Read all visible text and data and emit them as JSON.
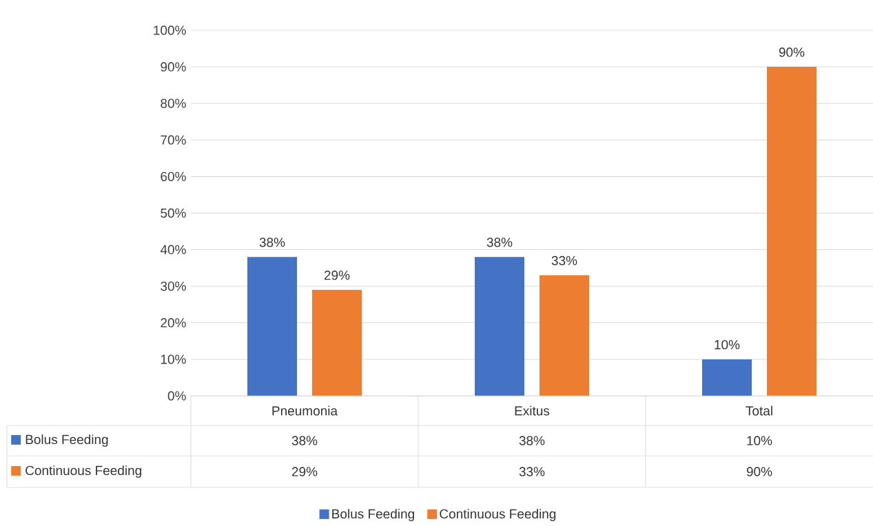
{
  "chart_data": {
    "type": "bar",
    "categories": [
      "Pneumonia",
      "Exitus",
      "Total"
    ],
    "series": [
      {
        "name": "Bolus Feeding",
        "color": "#4472c4",
        "values": [
          38,
          38,
          10
        ],
        "value_labels": [
          "38%",
          "38%",
          "10%"
        ]
      },
      {
        "name": "Continuous Feeding",
        "color": "#ed7d31",
        "values": [
          29,
          33,
          90
        ],
        "value_labels": [
          "29%",
          "33%",
          "90%"
        ]
      }
    ],
    "ylim": [
      0,
      100
    ],
    "yticks": [
      {
        "value": 0,
        "label": "0%"
      },
      {
        "value": 10,
        "label": "10%"
      },
      {
        "value": 20,
        "label": "20%"
      },
      {
        "value": 30,
        "label": "30%"
      },
      {
        "value": 40,
        "label": "40%"
      },
      {
        "value": 50,
        "label": "50%"
      },
      {
        "value": 60,
        "label": "60%"
      },
      {
        "value": 70,
        "label": "70%"
      },
      {
        "value": 80,
        "label": "80%"
      },
      {
        "value": 90,
        "label": "90%"
      },
      {
        "value": 100,
        "label": "100%"
      }
    ],
    "grid": "y",
    "legend": "bottom"
  }
}
